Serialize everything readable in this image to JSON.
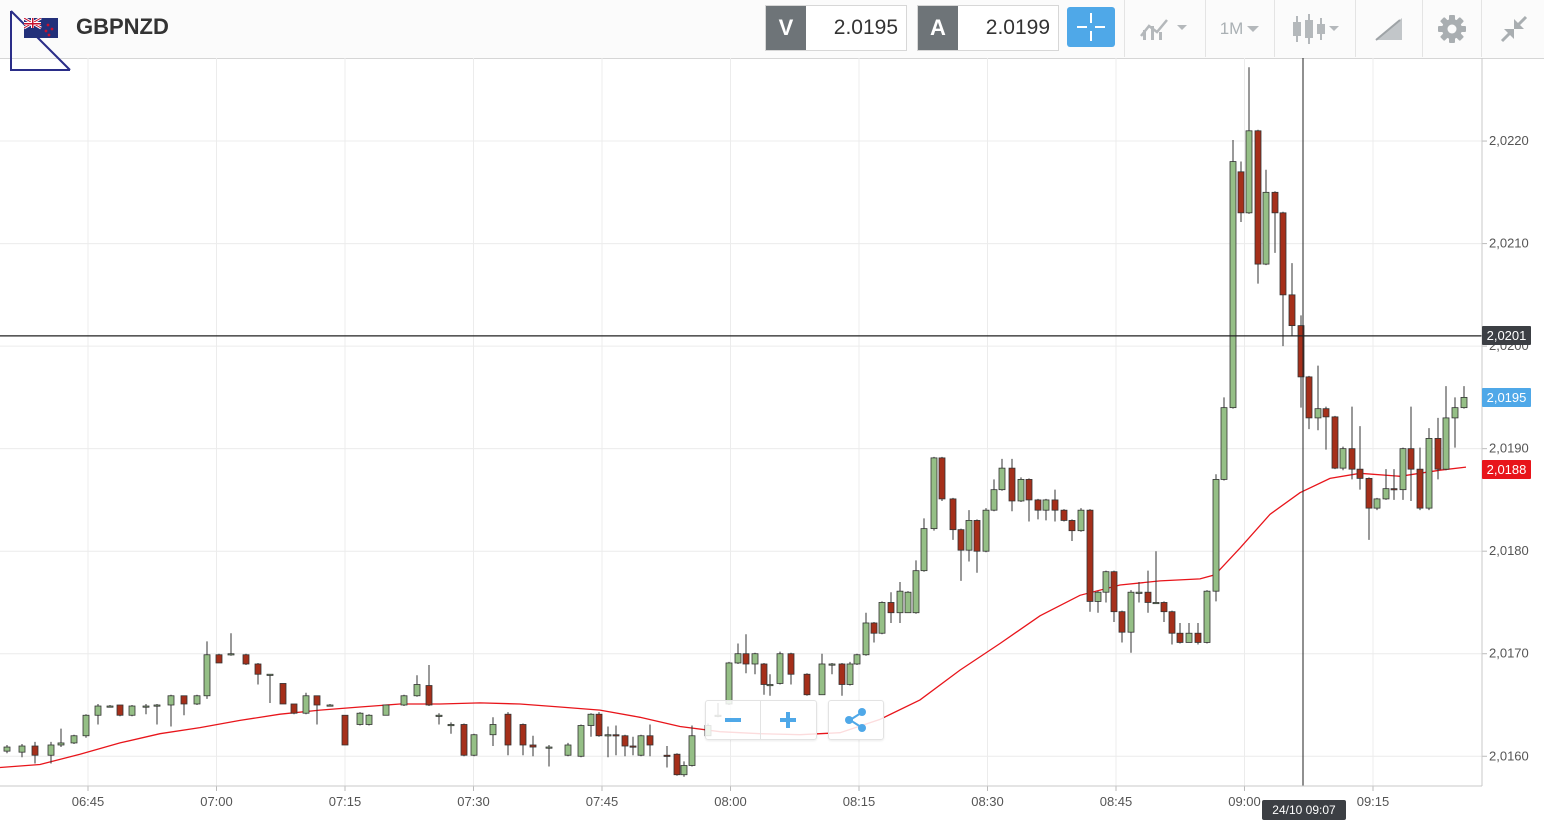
{
  "header": {
    "symbol": "GBPNZD",
    "bid": {
      "label": "V",
      "value": "2.0195"
    },
    "ask": {
      "label": "A",
      "value": "2.0199"
    },
    "timeframe": "1M",
    "icons": [
      "crosshair-icon",
      "chart-type-icon",
      "candlestick-icon",
      "drawing-tools-icon",
      "gear-icon",
      "collapse-icon"
    ]
  },
  "chart_data": {
    "type": "candlestick",
    "instrument": "GBPNZD",
    "interval": "1 minute",
    "x_ticks": [
      "06:45",
      "07:00",
      "07:15",
      "07:30",
      "07:45",
      "08:00",
      "08:15",
      "08:30",
      "08:45",
      "09:00",
      "09:15"
    ],
    "y_ticks": [
      "2,0160",
      "2,0170",
      "2,0180",
      "2,0190",
      "2,0200",
      "2,0210",
      "2,0220"
    ],
    "ylim": [
      2.01571,
      2.02281
    ],
    "horizontal_line": {
      "value": 2.0201,
      "label": "2,0201"
    },
    "current_price": {
      "value": 2.0195,
      "label": "2,0195",
      "color": "#4fa8e8"
    },
    "moving_average": {
      "value": 2.0188,
      "label": "2,0188",
      "color": "#e8151b"
    },
    "crosshair_time": "24/10 09:07",
    "ma_points": [
      [
        0,
        2.01589
      ],
      [
        40,
        2.01592
      ],
      [
        80,
        2.01602
      ],
      [
        120,
        2.01613
      ],
      [
        160,
        2.01622
      ],
      [
        200,
        2.01628
      ],
      [
        240,
        2.01635
      ],
      [
        280,
        2.01641
      ],
      [
        320,
        2.01645
      ],
      [
        360,
        2.01648
      ],
      [
        400,
        2.01651
      ],
      [
        440,
        2.01651
      ],
      [
        480,
        2.01652
      ],
      [
        520,
        2.01651
      ],
      [
        560,
        2.01648
      ],
      [
        600,
        2.01645
      ],
      [
        640,
        2.01638
      ],
      [
        680,
        2.01629
      ],
      [
        720,
        2.01624
      ],
      [
        760,
        2.01622
      ],
      [
        800,
        2.01621
      ],
      [
        840,
        2.01623
      ],
      [
        880,
        2.01636
      ],
      [
        920,
        2.01655
      ],
      [
        960,
        2.01684
      ],
      [
        1000,
        2.0171
      ],
      [
        1040,
        2.01737
      ],
      [
        1080,
        2.01757
      ],
      [
        1120,
        2.01767
      ],
      [
        1160,
        2.01771
      ],
      [
        1200,
        2.01773
      ],
      [
        1215,
        2.01777
      ],
      [
        1240,
        2.01803
      ],
      [
        1270,
        2.01836
      ],
      [
        1300,
        2.01857
      ],
      [
        1330,
        2.01871
      ],
      [
        1360,
        2.01876
      ],
      [
        1400,
        2.01873
      ],
      [
        1440,
        2.01879
      ],
      [
        1466,
        2.01882
      ]
    ],
    "candles": [
      [
        7,
        2.01605,
        2.01609,
        2.01611,
        2.01603
      ],
      [
        22,
        2.01604,
        2.0161,
        2.01612,
        2.01599
      ],
      [
        35,
        2.0161,
        2.01601,
        2.01614,
        2.01593
      ],
      [
        51,
        2.01601,
        2.01611,
        2.01614,
        2.01593
      ],
      [
        61,
        2.01611,
        2.01613,
        2.01627,
        2.01609
      ],
      [
        74,
        2.01613,
        2.0162,
        2.01621,
        2.01612
      ],
      [
        86,
        2.0162,
        2.0164,
        2.01641,
        2.01618
      ],
      [
        98,
        2.0164,
        2.01649,
        2.01651,
        2.01631
      ],
      [
        110,
        2.01649,
        2.01649,
        2.0165,
        2.01649
      ],
      [
        120,
        2.0165,
        2.0164,
        2.0165,
        2.01639
      ],
      [
        132,
        2.0164,
        2.01649,
        2.0165,
        2.01639
      ],
      [
        146,
        2.01649,
        2.01649,
        2.01651,
        2.01641
      ],
      [
        157,
        2.01649,
        2.0165,
        2.01651,
        2.01631
      ],
      [
        171,
        2.0165,
        2.01659,
        2.0166,
        2.01629
      ],
      [
        184,
        2.01659,
        2.01651,
        2.01659,
        2.0164
      ],
      [
        197,
        2.01651,
        2.01659,
        2.0166,
        2.0165
      ],
      [
        207,
        2.01659,
        2.01699,
        2.01712,
        2.01656
      ],
      [
        219,
        2.01699,
        2.01691,
        2.017,
        2.01691
      ],
      [
        231,
        2.017,
        2.017,
        2.0172,
        2.01698
      ],
      [
        246,
        2.01699,
        2.0169,
        2.017,
        2.01689
      ],
      [
        258,
        2.0169,
        2.0168,
        2.01691,
        2.0167
      ],
      [
        270,
        2.0168,
        2.0168,
        2.0168,
        2.01652
      ],
      [
        283,
        2.01671,
        2.01651,
        2.01671,
        2.01651
      ],
      [
        294,
        2.01651,
        2.01642,
        2.01651,
        2.01641
      ],
      [
        306,
        2.01642,
        2.01659,
        2.01662,
        2.01641
      ],
      [
        317,
        2.01659,
        2.0165,
        2.01659,
        2.01631
      ],
      [
        330,
        2.0165,
        2.0165,
        2.01651,
        2.01649
      ],
      [
        345,
        2.0164,
        2.01611,
        2.0164,
        2.01611
      ],
      [
        360,
        2.01631,
        2.01642,
        2.01643,
        2.0163
      ],
      [
        369,
        2.01631,
        2.0164,
        2.01641,
        2.0163
      ],
      [
        386,
        2.0164,
        2.0165,
        2.0165,
        2.0164
      ],
      [
        404,
        2.0165,
        2.01659,
        2.0166,
        2.01649
      ],
      [
        417,
        2.01659,
        2.0167,
        2.01679,
        2.01658
      ],
      [
        429,
        2.01669,
        2.0165,
        2.01689,
        2.01649
      ],
      [
        439,
        2.0164,
        2.0164,
        2.01642,
        2.01631
      ],
      [
        451,
        2.01631,
        2.01631,
        2.01633,
        2.01622
      ],
      [
        464,
        2.01631,
        2.01601,
        2.01632,
        2.016
      ],
      [
        474,
        2.01601,
        2.01621,
        2.01622,
        2.016
      ],
      [
        493,
        2.01621,
        2.01631,
        2.01638,
        2.0161
      ],
      [
        508,
        2.01641,
        2.01611,
        2.01643,
        2.01601
      ],
      [
        523,
        2.01631,
        2.01611,
        2.01632,
        2.01601
      ],
      [
        533,
        2.01611,
        2.01609,
        2.0162,
        2.016
      ],
      [
        549,
        2.01609,
        2.01609,
        2.01611,
        2.0159
      ],
      [
        568,
        2.01601,
        2.01611,
        2.01613,
        2.016
      ],
      [
        581,
        2.016,
        2.0163,
        2.01631,
        2.01599
      ],
      [
        591,
        2.0163,
        2.01641,
        2.01642,
        2.01619
      ],
      [
        599,
        2.01641,
        2.0162,
        2.01643,
        2.01619
      ],
      [
        608,
        2.0162,
        2.01621,
        2.01629,
        2.01599
      ],
      [
        616,
        2.01621,
        2.0162,
        2.0163,
        2.01601
      ],
      [
        625,
        2.0162,
        2.0161,
        2.01621,
        2.016
      ],
      [
        633,
        2.0161,
        2.01609,
        2.01619,
        2.01601
      ],
      [
        641,
        2.01601,
        2.0162,
        2.01621,
        2.016
      ],
      [
        650,
        2.0162,
        2.01611,
        2.01631,
        2.016
      ],
      [
        667,
        2.01601,
        2.016,
        2.0161,
        2.01589
      ],
      [
        677,
        2.01602,
        2.01582,
        2.01603,
        2.01581
      ],
      [
        684,
        2.01582,
        2.01591,
        2.01595,
        2.0158
      ],
      [
        692,
        2.01591,
        2.0162,
        2.0163,
        2.0159
      ],
      [
        708,
        2.0162,
        2.0163,
        2.01632,
        2.0162
      ],
      [
        718,
        2.01639,
        2.0164,
        2.01652,
        2.01638
      ],
      [
        729,
        2.01651,
        2.01691,
        2.01692,
        2.0165
      ],
      [
        738,
        2.01691,
        2.017,
        2.0171,
        2.0169
      ],
      [
        746,
        2.017,
        2.0169,
        2.01719,
        2.01681
      ],
      [
        755,
        2.0169,
        2.017,
        2.01701,
        2.0168
      ],
      [
        764,
        2.0169,
        2.0167,
        2.01691,
        2.0166
      ],
      [
        770,
        2.0167,
        2.0167,
        2.0168,
        2.01659
      ],
      [
        780,
        2.01671,
        2.017,
        2.01702,
        2.0167
      ],
      [
        791,
        2.017,
        2.0168,
        2.01701,
        2.0167
      ],
      [
        807,
        2.0168,
        2.0166,
        2.01681,
        2.01659
      ],
      [
        822,
        2.0166,
        2.0169,
        2.017,
        2.01661
      ],
      [
        832,
        2.0169,
        2.0169,
        2.01691,
        2.0168
      ],
      [
        842,
        2.0169,
        2.0167,
        2.01691,
        2.01659
      ],
      [
        850,
        2.0167,
        2.0169,
        2.01692,
        2.01669
      ],
      [
        857,
        2.0169,
        2.01699,
        2.017,
        2.01689
      ],
      [
        866,
        2.01699,
        2.0173,
        2.0174,
        2.01698
      ],
      [
        874,
        2.0173,
        2.0172,
        2.01731,
        2.01711
      ],
      [
        882,
        2.0172,
        2.0175,
        2.01751,
        2.01719
      ],
      [
        891,
        2.0175,
        2.0174,
        2.0176,
        2.0173
      ],
      [
        900,
        2.0174,
        2.01761,
        2.0177,
        2.0173
      ],
      [
        908,
        2.0174,
        2.0176,
        2.01761,
        2.01741
      ],
      [
        916,
        2.0174,
        2.01781,
        2.01791,
        2.01739
      ],
      [
        924,
        2.01781,
        2.01822,
        2.01832,
        2.0178
      ],
      [
        934,
        2.01822,
        2.01891,
        2.01892,
        2.0182
      ],
      [
        942,
        2.01891,
        2.01851,
        2.01892,
        2.01849
      ],
      [
        953,
        2.01851,
        2.01821,
        2.01852,
        2.01811
      ],
      [
        961,
        2.01821,
        2.01801,
        2.01822,
        2.01771
      ],
      [
        969,
        2.01801,
        2.0183,
        2.0184,
        2.0179
      ],
      [
        977,
        2.0183,
        2.018,
        2.01831,
        2.01779
      ],
      [
        986,
        2.018,
        2.0184,
        2.01842,
        2.01799
      ],
      [
        994,
        2.0184,
        2.0186,
        2.0187,
        2.01839
      ],
      [
        1002,
        2.0186,
        2.01881,
        2.0189,
        2.01859
      ],
      [
        1012,
        2.01881,
        2.01849,
        2.0189,
        2.01839
      ],
      [
        1021,
        2.01849,
        2.0187,
        2.01872,
        2.01848
      ],
      [
        1029,
        2.0187,
        2.0185,
        2.01871,
        2.01829
      ],
      [
        1038,
        2.0185,
        2.0184,
        2.01851,
        2.01831
      ],
      [
        1046,
        2.0184,
        2.0185,
        2.01851,
        2.0183
      ],
      [
        1055,
        2.0185,
        2.0184,
        2.0186,
        2.01829
      ],
      [
        1064,
        2.0184,
        2.0183,
        2.01841,
        2.01829
      ],
      [
        1072,
        2.0183,
        2.0182,
        2.01831,
        2.0181
      ],
      [
        1081,
        2.0182,
        2.0184,
        2.01842,
        2.01819
      ],
      [
        1090,
        2.0184,
        2.01751,
        2.01841,
        2.01741
      ],
      [
        1098,
        2.01751,
        2.0176,
        2.01761,
        2.0174
      ],
      [
        1106,
        2.0176,
        2.0178,
        2.01781,
        2.0175
      ],
      [
        1114,
        2.0178,
        2.01741,
        2.01781,
        2.01731
      ],
      [
        1122,
        2.01741,
        2.01721,
        2.01742,
        2.01711
      ],
      [
        1131,
        2.01721,
        2.0176,
        2.01762,
        2.01701
      ],
      [
        1139,
        2.0176,
        2.0176,
        2.0177,
        2.0175
      ],
      [
        1148,
        2.0176,
        2.0175,
        2.01781,
        2.0174
      ],
      [
        1156,
        2.0175,
        2.0175,
        2.018,
        2.01749
      ],
      [
        1164,
        2.0175,
        2.01741,
        2.01751,
        2.01731
      ],
      [
        1172,
        2.01741,
        2.0172,
        2.01742,
        2.01709
      ],
      [
        1180,
        2.0172,
        2.01711,
        2.0173,
        2.0171
      ],
      [
        1189,
        2.01711,
        2.0172,
        2.0173,
        2.01711
      ],
      [
        1198,
        2.0172,
        2.01711,
        2.0173,
        2.01709
      ],
      [
        1207,
        2.01711,
        2.01761,
        2.01762,
        2.0171
      ],
      [
        1216,
        2.01761,
        2.0187,
        2.01875,
        2.01751
      ],
      [
        1224,
        2.0187,
        2.0194,
        2.0195,
        2.01869
      ],
      [
        1233,
        2.0194,
        2.0218,
        2.02201,
        2.01939
      ],
      [
        1241,
        2.0217,
        2.0213,
        2.0218,
        2.02121
      ],
      [
        1249,
        2.0213,
        2.0221,
        2.02272,
        2.02129
      ],
      [
        1258,
        2.0221,
        2.0208,
        2.02211,
        2.02061
      ],
      [
        1266,
        2.0208,
        2.0215,
        2.02172,
        2.02079
      ],
      [
        1275,
        2.0215,
        2.0213,
        2.02151,
        2.02091
      ],
      [
        1283,
        2.0213,
        2.0205,
        2.02131,
        2.02
      ],
      [
        1292,
        2.0205,
        2.0202,
        2.02081,
        2.0201
      ],
      [
        1301,
        2.0202,
        2.0197,
        2.0203,
        2.0194
      ],
      [
        1309,
        2.0197,
        2.0193,
        2.01971,
        2.01919
      ],
      [
        1318,
        2.0193,
        2.01939,
        2.01981,
        2.01918
      ],
      [
        1326,
        2.01939,
        2.01931,
        2.01941,
        2.01899
      ],
      [
        1335,
        2.01931,
        2.01881,
        2.01932,
        2.0188
      ],
      [
        1343,
        2.01881,
        2.019,
        2.01902,
        2.01879
      ],
      [
        1352,
        2.019,
        2.0188,
        2.01941,
        2.0187
      ],
      [
        1360,
        2.0188,
        2.01871,
        2.01922,
        2.0186
      ],
      [
        1369,
        2.01871,
        2.01842,
        2.01872,
        2.01811
      ],
      [
        1377,
        2.01842,
        2.01851,
        2.01852,
        2.0184
      ],
      [
        1386,
        2.01851,
        2.01861,
        2.0188,
        2.0185
      ],
      [
        1394,
        2.01861,
        2.0186,
        2.0188,
        2.0185
      ],
      [
        1403,
        2.0186,
        2.019,
        2.01901,
        2.0185
      ],
      [
        1411,
        2.019,
        2.0188,
        2.01941,
        2.01849
      ],
      [
        1420,
        2.0188,
        2.01842,
        2.01901,
        2.0184
      ],
      [
        1429,
        2.01842,
        2.0191,
        2.0192,
        2.0184
      ],
      [
        1438,
        2.0191,
        2.0188,
        2.0193,
        2.0187
      ],
      [
        1446,
        2.0188,
        2.0193,
        2.01961,
        2.01879
      ],
      [
        1455,
        2.0193,
        2.0194,
        2.0195,
        2.01901
      ],
      [
        1464,
        2.0194,
        2.0195,
        2.01961,
        2.01939
      ]
    ]
  }
}
